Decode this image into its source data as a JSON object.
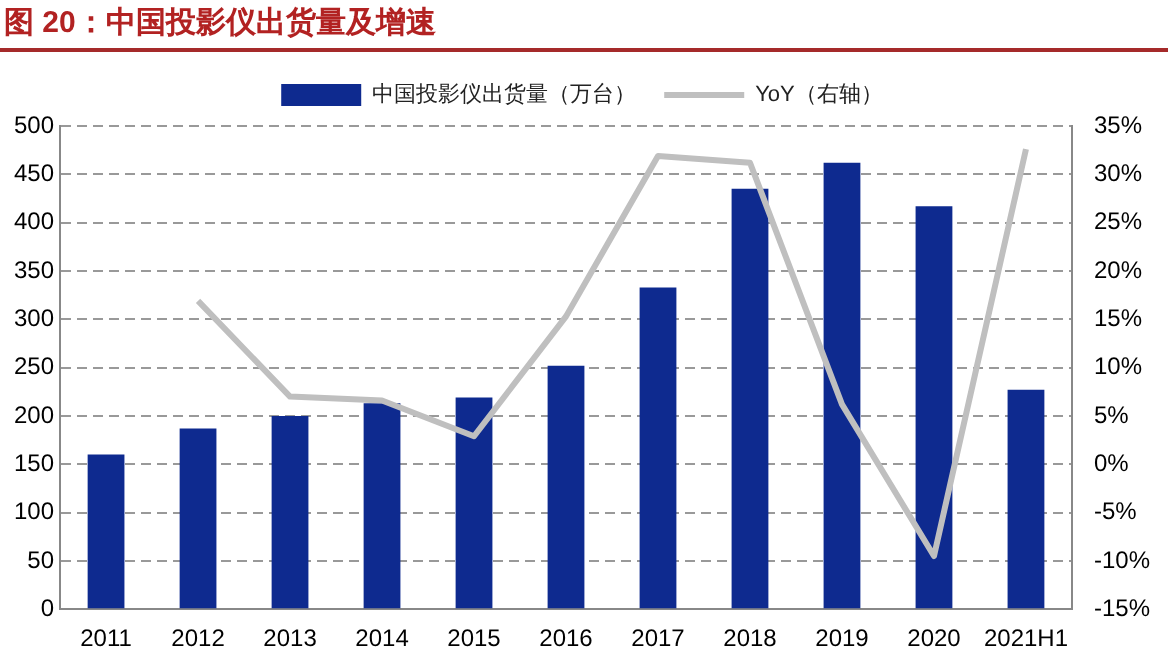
{
  "chart_data": {
    "type": "bar",
    "title": "图 20：中国投影仪出货量及增速",
    "categories": [
      "2011",
      "2012",
      "2013",
      "2014",
      "2015",
      "2016",
      "2017",
      "2018",
      "2019",
      "2020",
      "2021H1"
    ],
    "series": [
      {
        "name": "中国投影仪出货量（万台）",
        "type": "bar",
        "color": "#0e2a8f",
        "values": [
          160,
          187,
          200,
          213,
          219,
          252,
          333,
          435,
          462,
          417,
          227
        ]
      },
      {
        "name": "YoY（右轴）",
        "type": "line",
        "axis": "y2",
        "color": "#bfbfbf",
        "marker": "none",
        "values": [
          null,
          16.9,
          7.0,
          6.6,
          2.9,
          15.3,
          31.9,
          31.2,
          6.2,
          -9.5,
          32.6
        ]
      }
    ],
    "ylim": [
      0,
      500
    ],
    "yticks": [
      0,
      50,
      100,
      150,
      200,
      250,
      300,
      350,
      400,
      450,
      500
    ],
    "y2lim": [
      -15,
      35
    ],
    "y2ticks": [
      {
        "value": -15,
        "label": "-15%"
      },
      {
        "value": -10,
        "label": "-10%"
      },
      {
        "value": -5,
        "label": "-5%"
      },
      {
        "value": 0,
        "label": "0%"
      },
      {
        "value": 5,
        "label": "5%"
      },
      {
        "value": 10,
        "label": "10%"
      },
      {
        "value": 15,
        "label": "15%"
      },
      {
        "value": 20,
        "label": "20%"
      },
      {
        "value": 25,
        "label": "25%"
      },
      {
        "value": 30,
        "label": "30%"
      },
      {
        "value": 35,
        "label": "35%"
      }
    ],
    "grid": "y",
    "legend": "top"
  }
}
